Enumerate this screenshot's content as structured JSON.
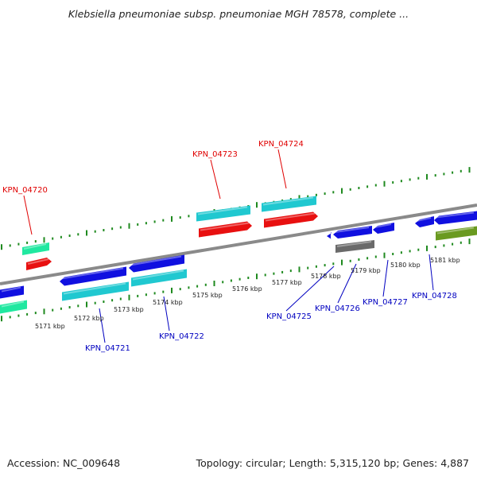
{
  "title": "Klebsiella pneumoniae subsp. pneumoniae MGH 78578, complete ...",
  "accession_text": "Accession: NC_009648",
  "summary_text": "Topology: circular; Length: 5,315,120 bp; Genes: 4,887",
  "colors": {
    "backbone": "#8a8a8a",
    "tick": "#1f8a1f",
    "forward_label": "#e00000",
    "reverse_label": "#0000c0",
    "cds_blue": "#1010e0",
    "cds_cyan": "#20c8d0",
    "cds_red": "#e81010",
    "cds_mint": "#20e8a0",
    "cds_grey": "#6a6a6a",
    "cds_olive": "#6a9a20"
  },
  "scale_labels": [
    "5171 kbp",
    "5172 kbp",
    "5173 kbp",
    "5174 kbp",
    "5175 kbp",
    "5176 kbp",
    "5177 kbp",
    "5178 kbp",
    "5179 kbp",
    "5180 kbp",
    "5181 kbp"
  ],
  "gene_labels": [
    {
      "name": "KPN_04720",
      "strand": "forward"
    },
    {
      "name": "KPN_04723",
      "strand": "forward"
    },
    {
      "name": "KPN_04724",
      "strand": "forward"
    },
    {
      "name": "KPN_04721",
      "strand": "reverse"
    },
    {
      "name": "KPN_04722",
      "strand": "reverse"
    },
    {
      "name": "KPN_04725",
      "strand": "reverse"
    },
    {
      "name": "KPN_04726",
      "strand": "reverse"
    },
    {
      "name": "KPN_04727",
      "strand": "reverse"
    },
    {
      "name": "KPN_04728",
      "strand": "reverse"
    }
  ]
}
